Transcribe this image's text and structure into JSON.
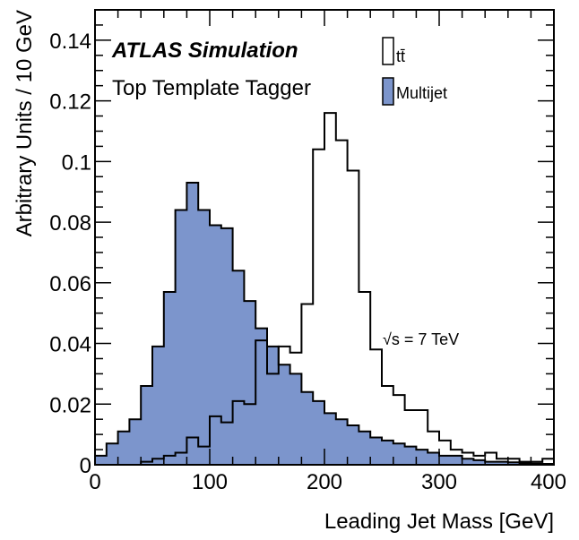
{
  "chart_data": {
    "type": "histogram",
    "title": "",
    "xlabel": "Leading Jet Mass [GeV]",
    "ylabel": "Arbitrary Units / 10 GeV",
    "xlim": [
      0,
      400
    ],
    "ylim": [
      0,
      0.15
    ],
    "bin_width": 10,
    "x_ticks": [
      0,
      100,
      200,
      300,
      400
    ],
    "x_tick_labels": [
      "0",
      "100",
      "200",
      "300",
      "400"
    ],
    "y_ticks": [
      0,
      0.02,
      0.04,
      0.06,
      0.08,
      0.1,
      0.12,
      0.14
    ],
    "y_tick_labels": [
      "0",
      "0.02",
      "0.04",
      "0.06",
      "0.08",
      "0.1",
      "0.12",
      "0.14"
    ],
    "grid": false,
    "legend_position": "top-right",
    "series": [
      {
        "name": "tt̄",
        "style": "outline",
        "color": "#000000",
        "fill": "#ffffff",
        "values": [
          0,
          0,
          0,
          0,
          0.001,
          0.002,
          0.003,
          0.004,
          0.009,
          0.006,
          0.016,
          0.014,
          0.021,
          0.02,
          0.041,
          0.03,
          0.039,
          0.037,
          0.053,
          0.104,
          0.116,
          0.107,
          0.097,
          0.057,
          0.038,
          0.026,
          0.023,
          0.018,
          0.018,
          0.011,
          0.008,
          0.005,
          0.004,
          0.003,
          0.004,
          0.002,
          0.002,
          0.001,
          0.001,
          0.002
        ]
      },
      {
        "name": "Multijet",
        "style": "filled",
        "color": "#000000",
        "fill": "#7c95cc",
        "values": [
          0.003,
          0.007,
          0.011,
          0.015,
          0.026,
          0.039,
          0.057,
          0.084,
          0.093,
          0.084,
          0.079,
          0.078,
          0.064,
          0.054,
          0.045,
          0.039,
          0.033,
          0.03,
          0.024,
          0.021,
          0.017,
          0.015,
          0.013,
          0.011,
          0.009,
          0.008,
          0.007,
          0.006,
          0.005,
          0.004,
          0.003,
          0.003,
          0.002,
          0.0015,
          0.001,
          0.001,
          0.0008,
          0.0006,
          0.0004,
          0.0003
        ]
      }
    ],
    "annotations": {
      "experiment_bold": "ATLAS",
      "experiment_rest": "Simulation",
      "tagger": "Top Template Tagger",
      "energy_sqrt": "√s",
      "energy_value": " = 7 TeV"
    }
  }
}
